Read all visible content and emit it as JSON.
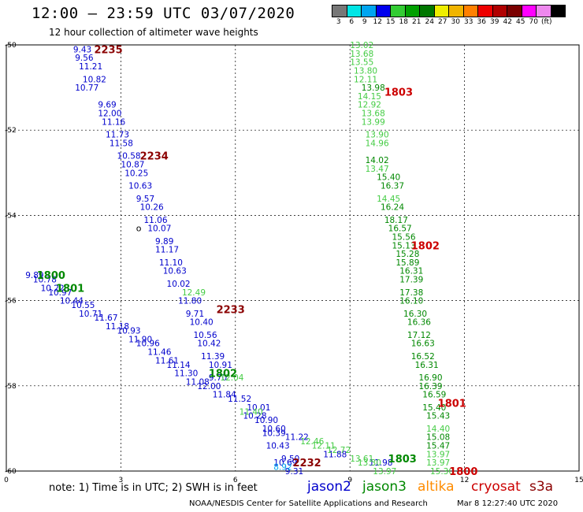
{
  "header": {
    "title": "12:00 – 23:59 UTC 03/07/2020",
    "subtitle": "12 hour collection of altimeter wave heights"
  },
  "colorbar": {
    "colors": [
      "#777777",
      "#00e5e5",
      "#00a5f0",
      "#0000ee",
      "#33cc33",
      "#00a000",
      "#007700",
      "#eeee00",
      "#f0b400",
      "#ff8000",
      "#ee0000",
      "#b00000",
      "#7a0000",
      "#ff00ff",
      "#ee88ee",
      "#000000"
    ],
    "labels": [
      "3",
      "6",
      "9",
      "12",
      "15",
      "18",
      "21",
      "24",
      "27",
      "30",
      "33",
      "36",
      "39",
      "42",
      "45",
      "70",
      "(ft)"
    ]
  },
  "axes": {
    "x_ticks": [
      "0",
      "3",
      "6",
      "9",
      "12",
      "15"
    ],
    "y_ticks": [
      "-50",
      "-52",
      "-54",
      "-56",
      "-58",
      "-60"
    ]
  },
  "colors": {
    "jason2": "#0000cc",
    "jason3": "#008800",
    "altika": "#ff8c00",
    "cryosat": "#cc0000",
    "s3a": "#8b0000",
    "light_green": "#44cc44"
  },
  "chart_data": {
    "type": "scatter",
    "title": "12 hour collection of altimeter wave heights",
    "xlim": [
      0,
      15
    ],
    "ylim": [
      -60,
      -50
    ],
    "grid": true,
    "pass_labels": [
      {
        "text": "2235",
        "lon": 2.3,
        "lat": -50.1,
        "color": "#8b0000"
      },
      {
        "text": "2234",
        "lon": 3.5,
        "lat": -52.6,
        "color": "#8b0000"
      },
      {
        "text": "2233",
        "lon": 5.5,
        "lat": -56.2,
        "color": "#8b0000"
      },
      {
        "text": "2232",
        "lon": 7.5,
        "lat": -59.8,
        "color": "#8b0000"
      },
      {
        "text": "1803",
        "lon": 9.9,
        "lat": -51.1,
        "color": "#cc0000"
      },
      {
        "text": "1802",
        "lon": 10.6,
        "lat": -54.7,
        "color": "#cc0000"
      },
      {
        "text": "1801",
        "lon": 11.3,
        "lat": -58.4,
        "color": "#cc0000"
      },
      {
        "text": "1800",
        "lon": 11.6,
        "lat": -60.0,
        "color": "#cc0000"
      },
      {
        "text": "1800",
        "lon": 0.8,
        "lat": -55.4,
        "color": "#008800"
      },
      {
        "text": "1801",
        "lon": 1.3,
        "lat": -55.7,
        "color": "#008800"
      },
      {
        "text": "1802",
        "lon": 5.3,
        "lat": -57.7,
        "color": "#008800"
      },
      {
        "text": "1803",
        "lon": 10.0,
        "lat": -59.7,
        "color": "#008800"
      }
    ],
    "series": [
      {
        "name": "jason2",
        "color": "#0000cc",
        "points": [
          {
            "lon": 1.75,
            "lat": -50.1,
            "v": "9.43"
          },
          {
            "lon": 1.8,
            "lat": -50.3,
            "v": "9.56"
          },
          {
            "lon": 1.9,
            "lat": -50.5,
            "v": "11.21"
          },
          {
            "lon": 2.0,
            "lat": -50.8,
            "v": "10.82"
          },
          {
            "lon": 1.8,
            "lat": -51.0,
            "v": "10.77"
          },
          {
            "lon": 2.4,
            "lat": -51.4,
            "v": "9.69"
          },
          {
            "lon": 2.4,
            "lat": -51.6,
            "v": "12.00"
          },
          {
            "lon": 2.5,
            "lat": -51.8,
            "v": "11.16"
          },
          {
            "lon": 2.6,
            "lat": -52.1,
            "v": "11.73"
          },
          {
            "lon": 2.7,
            "lat": -52.3,
            "v": "11.58"
          },
          {
            "lon": 2.9,
            "lat": -52.6,
            "v": "10.58"
          },
          {
            "lon": 3.0,
            "lat": -52.8,
            "v": "10.87"
          },
          {
            "lon": 3.1,
            "lat": -53.0,
            "v": "10.25"
          },
          {
            "lon": 3.2,
            "lat": -53.3,
            "v": "10.63"
          },
          {
            "lon": 3.4,
            "lat": -53.6,
            "v": "9.57"
          },
          {
            "lon": 3.5,
            "lat": -53.8,
            "v": "10.26"
          },
          {
            "lon": 3.6,
            "lat": -54.1,
            "v": "11.06"
          },
          {
            "lon": 3.7,
            "lat": -54.3,
            "v": "10.07"
          },
          {
            "lon": 3.9,
            "lat": -54.6,
            "v": "9.89"
          },
          {
            "lon": 3.9,
            "lat": -54.8,
            "v": "11.17"
          },
          {
            "lon": 4.0,
            "lat": -55.1,
            "v": "11.10"
          },
          {
            "lon": 4.1,
            "lat": -55.3,
            "v": "10.63"
          },
          {
            "lon": 4.2,
            "lat": -55.6,
            "v": "10.02"
          },
          {
            "lon": 4.5,
            "lat": -56.0,
            "v": "11.80"
          },
          {
            "lon": 4.7,
            "lat": -56.3,
            "v": "9.71"
          },
          {
            "lon": 4.8,
            "lat": -56.5,
            "v": "10.40"
          },
          {
            "lon": 4.9,
            "lat": -56.8,
            "v": "10.56"
          },
          {
            "lon": 5.0,
            "lat": -57.0,
            "v": "10.42"
          },
          {
            "lon": 5.1,
            "lat": -57.3,
            "v": "11.39"
          },
          {
            "lon": 5.3,
            "lat": -57.5,
            "v": "10.91"
          },
          {
            "lon": 5.3,
            "lat": -57.8,
            "v": "9.70"
          },
          {
            "lon": 0.5,
            "lat": -55.4,
            "v": "9.89"
          },
          {
            "lon": 0.7,
            "lat": -55.5,
            "v": "10.78"
          },
          {
            "lon": 0.9,
            "lat": -55.7,
            "v": "10.22"
          },
          {
            "lon": 1.1,
            "lat": -55.8,
            "v": "10.97"
          },
          {
            "lon": 1.4,
            "lat": -56.0,
            "v": "10.44"
          },
          {
            "lon": 1.7,
            "lat": -56.1,
            "v": "10.55"
          },
          {
            "lon": 1.9,
            "lat": -56.3,
            "v": "10.71"
          },
          {
            "lon": 2.3,
            "lat": -56.4,
            "v": "11.67"
          },
          {
            "lon": 2.6,
            "lat": -56.6,
            "v": "11.18"
          },
          {
            "lon": 2.9,
            "lat": -56.7,
            "v": "10.93"
          },
          {
            "lon": 3.2,
            "lat": -56.9,
            "v": "11.90"
          },
          {
            "lon": 3.4,
            "lat": -57.0,
            "v": "10.96"
          },
          {
            "lon": 3.7,
            "lat": -57.2,
            "v": "11.46"
          },
          {
            "lon": 3.9,
            "lat": -57.4,
            "v": "11.61"
          },
          {
            "lon": 4.2,
            "lat": -57.5,
            "v": "11.14"
          },
          {
            "lon": 4.4,
            "lat": -57.7,
            "v": "11.30"
          },
          {
            "lon": 4.7,
            "lat": -57.9,
            "v": "11.08"
          },
          {
            "lon": 5.0,
            "lat": -58.0,
            "v": "12.00"
          },
          {
            "lon": 5.4,
            "lat": -58.2,
            "v": "11.84"
          },
          {
            "lon": 5.8,
            "lat": -58.3,
            "v": "11.52"
          },
          {
            "lon": 6.3,
            "lat": -58.5,
            "v": "10.01"
          },
          {
            "lon": 6.2,
            "lat": -58.7,
            "v": "10.28"
          },
          {
            "lon": 6.5,
            "lat": -58.8,
            "v": "10.90"
          },
          {
            "lon": 6.7,
            "lat": -59.0,
            "v": "10.60"
          },
          {
            "lon": 6.7,
            "lat": -59.1,
            "v": "10.39"
          },
          {
            "lon": 7.3,
            "lat": -59.2,
            "v": "11.22"
          },
          {
            "lon": 6.8,
            "lat": -59.4,
            "v": "10.43"
          },
          {
            "lon": 7.2,
            "lat": -59.7,
            "v": "9.50"
          },
          {
            "lon": 7.0,
            "lat": -59.8,
            "v": "10.69"
          },
          {
            "lon": 7.3,
            "lat": -60.0,
            "v": "9.31"
          },
          {
            "lon": 8.3,
            "lat": -59.6,
            "v": "11.88"
          },
          {
            "lon": 9.5,
            "lat": -59.8,
            "v": "11.98"
          }
        ]
      },
      {
        "name": "jason2-light",
        "color": "#00a5f0",
        "points": [
          {
            "lon": 7.0,
            "lat": -59.9,
            "v": "8.92"
          }
        ]
      },
      {
        "name": "jason3",
        "color": "#008800",
        "points": [
          {
            "lon": 9.3,
            "lat": -51.0,
            "v": "13.98"
          },
          {
            "lon": 9.4,
            "lat": -52.7,
            "v": "14.02"
          },
          {
            "lon": 9.7,
            "lat": -53.1,
            "v": "15.40"
          },
          {
            "lon": 9.8,
            "lat": -53.3,
            "v": "16.37"
          },
          {
            "lon": 9.8,
            "lat": -53.8,
            "v": "16.24"
          },
          {
            "lon": 9.9,
            "lat": -54.1,
            "v": "18.17"
          },
          {
            "lon": 10.0,
            "lat": -54.3,
            "v": "16.57"
          },
          {
            "lon": 10.1,
            "lat": -54.5,
            "v": "15.56"
          },
          {
            "lon": 10.1,
            "lat": -54.7,
            "v": "15.13"
          },
          {
            "lon": 10.2,
            "lat": -54.9,
            "v": "15.28"
          },
          {
            "lon": 10.2,
            "lat": -55.1,
            "v": "15.89"
          },
          {
            "lon": 10.3,
            "lat": -55.3,
            "v": "16.31"
          },
          {
            "lon": 10.3,
            "lat": -55.5,
            "v": "17.39"
          },
          {
            "lon": 10.3,
            "lat": -55.8,
            "v": "17.38"
          },
          {
            "lon": 10.3,
            "lat": -56.0,
            "v": "16.10"
          },
          {
            "lon": 10.4,
            "lat": -56.3,
            "v": "16.30"
          },
          {
            "lon": 10.5,
            "lat": -56.5,
            "v": "16.36"
          },
          {
            "lon": 10.5,
            "lat": -56.8,
            "v": "17.12"
          },
          {
            "lon": 10.6,
            "lat": -57.0,
            "v": "16.63"
          },
          {
            "lon": 10.6,
            "lat": -57.3,
            "v": "16.52"
          },
          {
            "lon": 10.7,
            "lat": -57.5,
            "v": "16.31"
          },
          {
            "lon": 10.8,
            "lat": -57.8,
            "v": "16.90"
          },
          {
            "lon": 10.8,
            "lat": -58.0,
            "v": "16.39"
          },
          {
            "lon": 10.9,
            "lat": -58.2,
            "v": "16.59"
          },
          {
            "lon": 10.9,
            "lat": -58.5,
            "v": "15.40"
          },
          {
            "lon": 11.0,
            "lat": -58.7,
            "v": "15.43"
          },
          {
            "lon": 11.0,
            "lat": -59.2,
            "v": "15.08"
          },
          {
            "lon": 11.0,
            "lat": -59.4,
            "v": "15.47"
          }
        ]
      },
      {
        "name": "jason3-light",
        "color": "#44cc44",
        "points": [
          {
            "lon": 9.0,
            "lat": -50.0,
            "v": "13.02"
          },
          {
            "lon": 9.0,
            "lat": -50.2,
            "v": "13.68"
          },
          {
            "lon": 9.0,
            "lat": -50.4,
            "v": "13.55"
          },
          {
            "lon": 9.1,
            "lat": -50.6,
            "v": "13.80"
          },
          {
            "lon": 9.1,
            "lat": -50.8,
            "v": "12.11"
          },
          {
            "lon": 9.2,
            "lat": -51.2,
            "v": "14.15"
          },
          {
            "lon": 9.2,
            "lat": -51.4,
            "v": "12.92"
          },
          {
            "lon": 9.3,
            "lat": -51.6,
            "v": "13.68"
          },
          {
            "lon": 9.3,
            "lat": -51.8,
            "v": "13.99"
          },
          {
            "lon": 9.4,
            "lat": -52.1,
            "v": "13.90"
          },
          {
            "lon": 9.4,
            "lat": -52.3,
            "v": "14.96"
          },
          {
            "lon": 9.4,
            "lat": -52.9,
            "v": "13.47"
          },
          {
            "lon": 9.7,
            "lat": -53.6,
            "v": "14.45"
          },
          {
            "lon": 4.6,
            "lat": -55.8,
            "v": "12.49"
          },
          {
            "lon": 7.7,
            "lat": -59.3,
            "v": "12.46"
          },
          {
            "lon": 8.0,
            "lat": -59.4,
            "v": "12.11"
          },
          {
            "lon": 8.4,
            "lat": -59.5,
            "v": "12.72"
          },
          {
            "lon": 9.0,
            "lat": -59.7,
            "v": "13.61"
          },
          {
            "lon": 9.2,
            "lat": -59.8,
            "v": "13.30"
          },
          {
            "lon": 9.6,
            "lat": -60.0,
            "v": "13.97"
          },
          {
            "lon": 11.0,
            "lat": -59.0,
            "v": "14.40"
          },
          {
            "lon": 11.0,
            "lat": -59.6,
            "v": "13.97"
          },
          {
            "lon": 11.0,
            "lat": -59.8,
            "v": "13.97"
          },
          {
            "lon": 11.1,
            "lat": -60.0,
            "v": "15.30"
          },
          {
            "lon": 5.6,
            "lat": -57.8,
            "v": "12.04"
          },
          {
            "lon": 6.1,
            "lat": -58.6,
            "v": "11.40"
          }
        ]
      }
    ],
    "markers": [
      {
        "text": "o",
        "lon": 3.4,
        "lat": -54.3
      }
    ]
  },
  "footer": {
    "note": "note:  1) Time is in UTC;  2) SWH is in feet",
    "legend": [
      {
        "name": "jason2",
        "color": "#0000cc"
      },
      {
        "name": "jason3",
        "color": "#008800"
      },
      {
        "name": "altika",
        "color": "#ff8c00"
      },
      {
        "name": "cryosat",
        "color": "#cc0000"
      },
      {
        "name": "s3a",
        "color": "#8b0000"
      }
    ],
    "credit": "NOAA/NESDIS Center for Satellite Applications and Research",
    "timestamp": "Mar  8 12:27:40 UTC 2020"
  }
}
